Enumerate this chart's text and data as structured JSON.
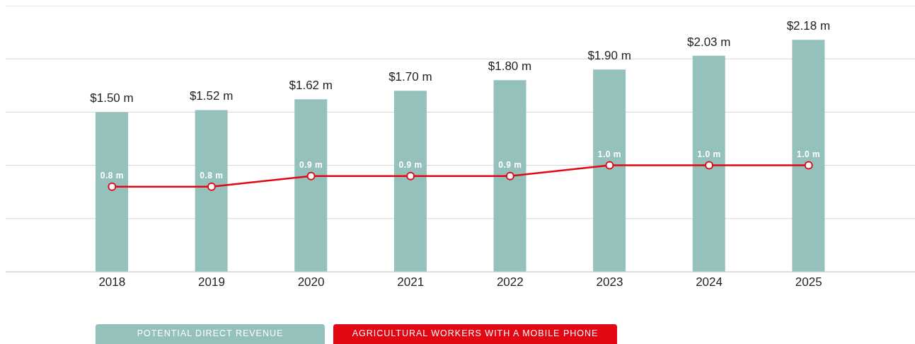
{
  "chart_data": {
    "type": "bar",
    "categories": [
      "2018",
      "2019",
      "2020",
      "2021",
      "2022",
      "2023",
      "2024",
      "2025"
    ],
    "series": [
      {
        "name": "POTENTIAL DIRECT REVENUE",
        "color": "#95c1bd",
        "values": [
          1.5,
          1.52,
          1.62,
          1.7,
          1.8,
          1.9,
          2.03,
          2.18
        ],
        "value_labels": [
          "$1.50 m",
          "$1.52 m",
          "$1.62 m",
          "$1.70 m",
          "$1.80 m",
          "$1.90 m",
          "$2.03 m",
          "$2.18 m"
        ]
      },
      {
        "name": "AGRICULTURAL WORKERS WITH A MOBILE PHONE",
        "type": "line",
        "color": "#e30613",
        "values": [
          0.8,
          0.8,
          0.9,
          0.9,
          0.9,
          1.0,
          1.0,
          1.0
        ],
        "value_labels": [
          "0.8 m",
          "0.8 m",
          "0.9 m",
          "0.9 m",
          "0.9 m",
          "1.0 m",
          "1.0 m",
          "1.0 m"
        ]
      }
    ],
    "ylim": [
      0,
      2.5
    ],
    "grid": "y",
    "legend": "bottom",
    "tick_labels": "x",
    "marker": "circle",
    "line_style": "solid"
  }
}
